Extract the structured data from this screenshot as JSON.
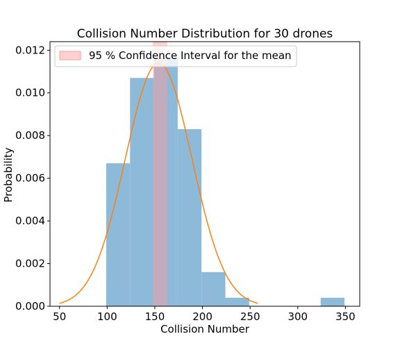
{
  "chart_data": {
    "type": "bar",
    "title": "Collision Number Distribution for 30 drones",
    "xlabel": "Collision Number",
    "ylabel": "Probability",
    "xlim": [
      40,
      365
    ],
    "ylim": [
      0,
      0.0124
    ],
    "xticks": [
      50,
      100,
      150,
      200,
      250,
      300,
      350
    ],
    "xtick_labels": [
      "50",
      "100",
      "150",
      "200",
      "250",
      "300",
      "350"
    ],
    "yticks": [
      0,
      0.002,
      0.004,
      0.006,
      0.008,
      0.01,
      0.012
    ],
    "ytick_labels": [
      "0.000",
      "0.002",
      "0.004",
      "0.006",
      "0.008",
      "0.010",
      "0.012"
    ],
    "grid": false,
    "legend": {
      "placement": "top-left",
      "entries": [
        "95 % Confidence Interval for the mean"
      ]
    },
    "histogram": {
      "color": "#8ebad9",
      "bins": [
        {
          "x0": 99,
          "x1": 124,
          "density": 0.0067
        },
        {
          "x0": 124,
          "x1": 149,
          "density": 0.0107
        },
        {
          "x0": 149,
          "x1": 174,
          "density": 0.0117
        },
        {
          "x0": 174,
          "x1": 199,
          "density": 0.0083
        },
        {
          "x0": 199,
          "x1": 224,
          "density": 0.0016
        },
        {
          "x0": 224,
          "x1": 249,
          "density": 0.0004
        },
        {
          "x0": 249,
          "x1": 274,
          "density": 0
        },
        {
          "x0": 274,
          "x1": 299,
          "density": 0
        },
        {
          "x0": 299,
          "x1": 324,
          "density": 0
        },
        {
          "x0": 324,
          "x1": 349,
          "density": 0.0004
        }
      ]
    },
    "normal_fit": {
      "color": "#ff7f0e",
      "mean": 154,
      "std": 35,
      "x_range": [
        50,
        258
      ]
    },
    "confidence_interval": {
      "lower": 148,
      "upper": 163,
      "color": "#ff9999",
      "opacity": 0.45
    }
  }
}
